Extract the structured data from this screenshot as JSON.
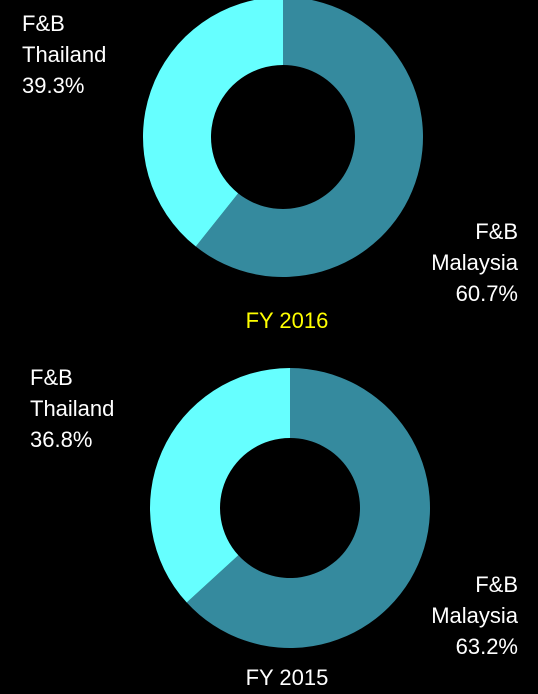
{
  "chart_data": [
    {
      "type": "pie",
      "title": "FY 2016",
      "title_color": "#ffff00",
      "donut": true,
      "categories": [
        "F&B Malaysia",
        "F&B Thailand"
      ],
      "values": [
        60.7,
        39.3
      ],
      "value_labels": [
        "60.7%",
        "39.3%"
      ],
      "colors": [
        "#358a9e",
        "#66ffff"
      ]
    },
    {
      "type": "pie",
      "title": "FY 2015",
      "title_color": "#ffffff",
      "donut": true,
      "categories": [
        "F&B Malaysia",
        "F&B Thailand"
      ],
      "values": [
        63.2,
        36.8
      ],
      "value_labels": [
        "63.2%",
        "36.8%"
      ],
      "colors": [
        "#358a9e",
        "#66ffff"
      ]
    }
  ]
}
